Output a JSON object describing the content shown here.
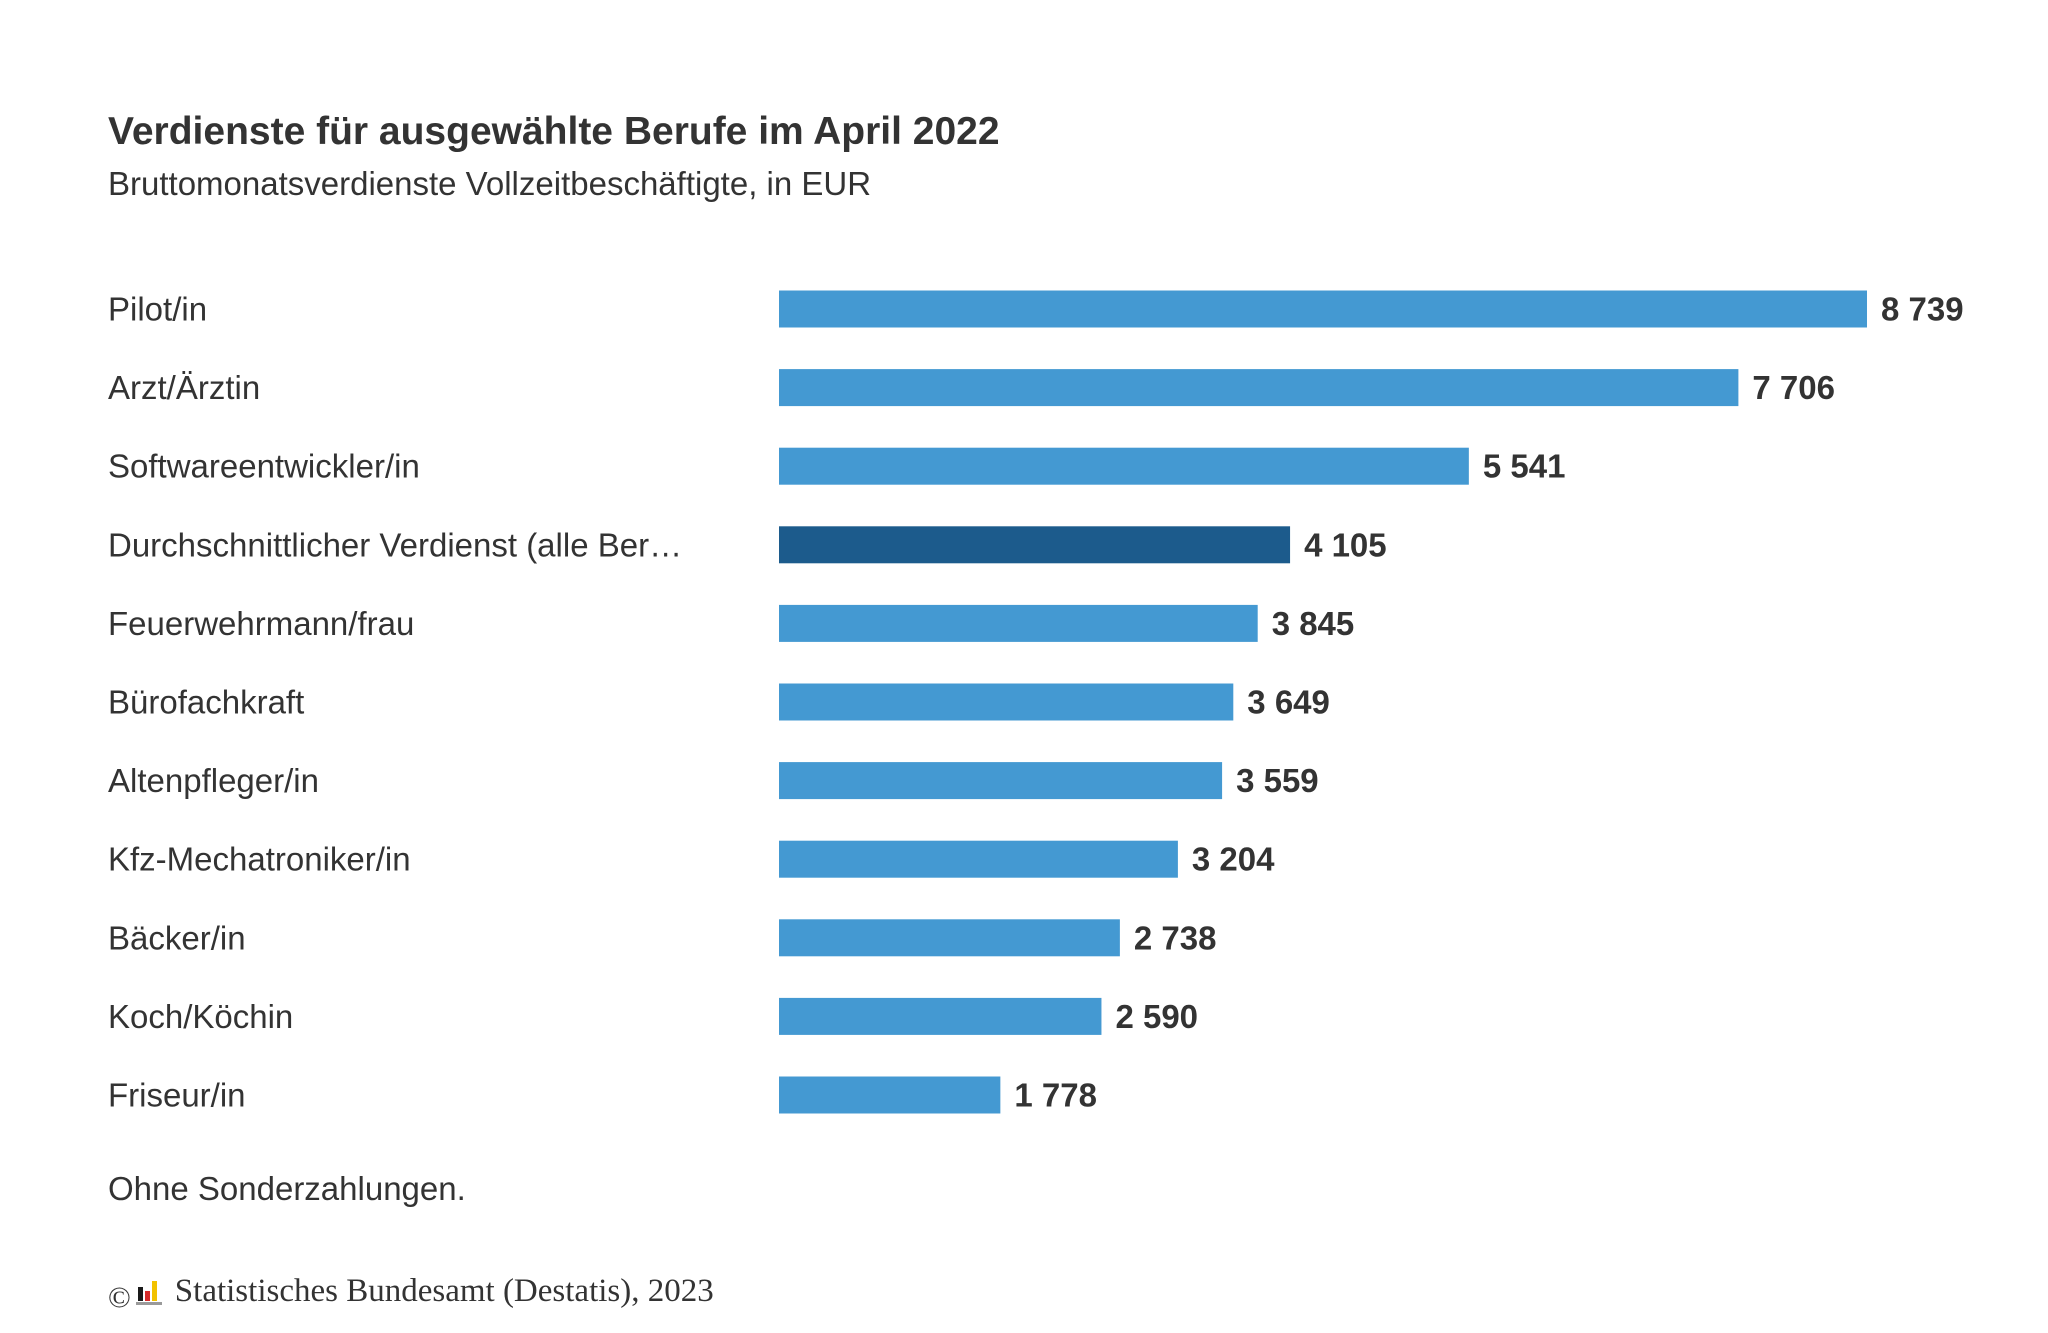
{
  "chart_data": {
    "type": "bar",
    "orientation": "horizontal",
    "title": "Verdienste für ausgewählte Berufe im April 2022",
    "subtitle": "Bruttomonatsverdienste Vollzeitbeschäftigte, in EUR",
    "categories": [
      "Pilot/in",
      "Arzt/Ärztin",
      "Softwareentwickler/in",
      "Durchschnittlicher Verdienst (alle Ber…",
      "Feuerwehrmann/frau",
      "Bürofachkraft",
      "Altenpfleger/in",
      "Kfz-Mechatroniker/in",
      "Bäcker/in",
      "Koch/Köchin",
      "Friseur/in"
    ],
    "values": [
      8739,
      7706,
      5541,
      4105,
      3845,
      3649,
      3559,
      3204,
      2738,
      2590,
      1778
    ],
    "value_labels": [
      "8 739",
      "7 706",
      "5 541",
      "4 105",
      "3 845",
      "3 649",
      "3 559",
      "3 204",
      "2 738",
      "2 590",
      "1 778"
    ],
    "highlight_index": 3,
    "xlim": [
      0,
      8739
    ],
    "grid": false,
    "legend": "none",
    "xlabel": "",
    "ylabel": ""
  },
  "colors": {
    "bar": "#4499d2",
    "bar_highlight": "#1c5b8c",
    "text": "#333333"
  },
  "footnote": "Ohne Sonderzahlungen.",
  "credit": {
    "symbol": "©",
    "text": "Statistisches Bundesamt (Destatis), 2023",
    "logo_icon": "destatis-logo-icon"
  }
}
